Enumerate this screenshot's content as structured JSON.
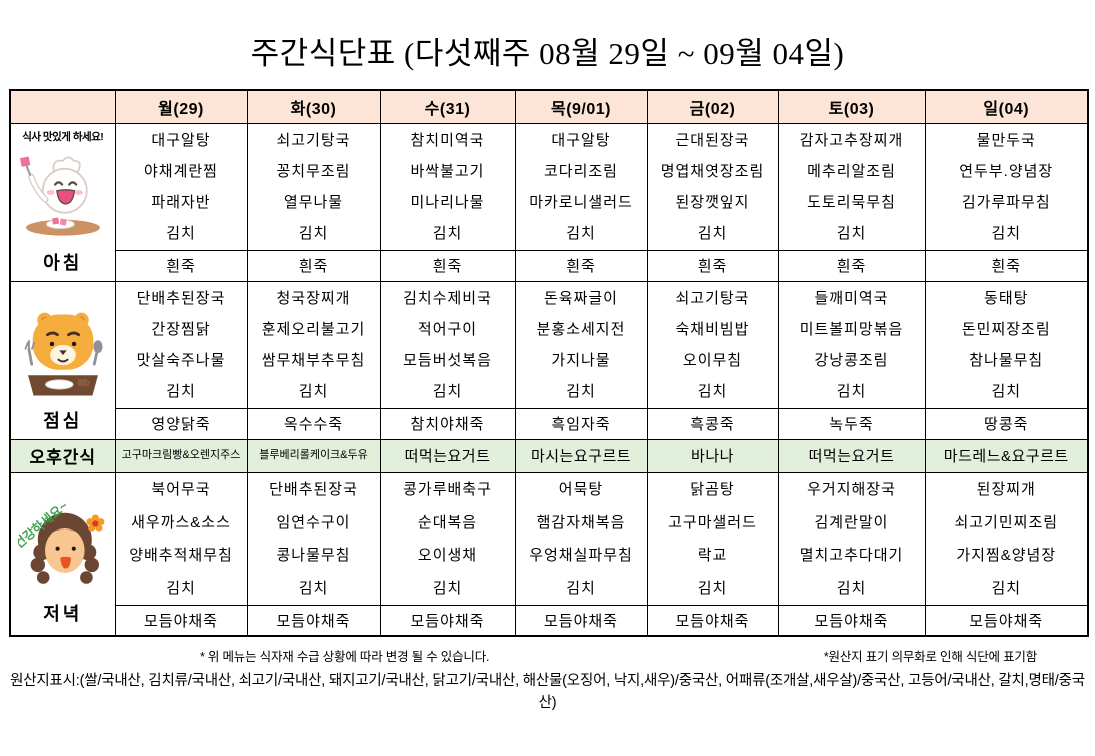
{
  "title": "주간식단표 (다섯째주 08월 29일 ~ 09월 04일)",
  "days": [
    "월(29)",
    "화(30)",
    "수(31)",
    "목(9/01)",
    "금(02)",
    "토(03)",
    "일(04)"
  ],
  "rows": {
    "breakfast": {
      "label": "아침",
      "icon": "eating-character-icon",
      "icon_caption": "식사 맛있게 하세요!",
      "menus": [
        [
          "대구알탕",
          "야채계란찜",
          "파래자반",
          "김치"
        ],
        [
          "쇠고기탕국",
          "꽁치무조림",
          "열무나물",
          "김치"
        ],
        [
          "참치미역국",
          "바싹불고기",
          "미나리나물",
          "김치"
        ],
        [
          "대구알탕",
          "코다리조림",
          "마카로니샐러드",
          "김치"
        ],
        [
          "근대된장국",
          "명엽채엿장조림",
          "된장깻잎지",
          "김치"
        ],
        [
          "감자고추장찌개",
          "메추리알조림",
          "도토리묵무침",
          "김치"
        ],
        [
          "물만두국",
          "연두부.양념장",
          "김가루파무침",
          "김치"
        ]
      ],
      "porridge": [
        "흰죽",
        "흰죽",
        "흰죽",
        "흰죽",
        "흰죽",
        "흰죽",
        "흰죽"
      ]
    },
    "lunch": {
      "label": "점심",
      "icon": "ryan-bear-icon",
      "menus": [
        [
          "단배추된장국",
          "간장찜닭",
          "맛살숙주나물",
          "김치"
        ],
        [
          "청국장찌개",
          "훈제오리불고기",
          "쌈무채부추무침",
          "김치"
        ],
        [
          "김치수제비국",
          "적어구이",
          "모듬버섯복음",
          "김치"
        ],
        [
          "돈육짜글이",
          "분홍소세지전",
          "가지나물",
          "김치"
        ],
        [
          "쇠고기탕국",
          "숙채비빔밥",
          "오이무침",
          "김치"
        ],
        [
          "들깨미역국",
          "미트볼피망볶음",
          "강낭콩조림",
          "김치"
        ],
        [
          "동태탕",
          "돈민찌장조림",
          "참나물무침",
          "김치"
        ]
      ],
      "porridge": [
        "영양닭죽",
        "옥수수죽",
        "참치야채죽",
        "흑임자죽",
        "흑콩죽",
        "녹두죽",
        "땅콩죽"
      ]
    },
    "snack": {
      "label": "오후간식",
      "items": [
        "고구마크림빵&오렌지주스",
        "블루베리롤케이크&두유",
        "떠먹는요거트",
        "마시는요구르트",
        "바나나",
        "떠먹는요거트",
        "마드레느&요구르트"
      ]
    },
    "dinner": {
      "label": "저녁",
      "icon": "healthy-woman-icon",
      "icon_caption": "건강하세요~",
      "menus": [
        [
          "북어무국",
          "새우까스&소스",
          "양배추적채무침",
          "김치"
        ],
        [
          "단배추된장국",
          "임연수구이",
          "콩나물무침",
          "김치"
        ],
        [
          "콩가루배축구",
          "순대복음",
          "오이생채",
          "김치"
        ],
        [
          "어묵탕",
          "햄감자채복음",
          "우엉채실파무침",
          "김치"
        ],
        [
          "닭곰탕",
          "고구마샐러드",
          "락교",
          "김치"
        ],
        [
          "우거지해장국",
          "김계란말이",
          "멸치고추다대기",
          "김치"
        ],
        [
          "된장찌개",
          "쇠고기민찌조림",
          "가지찜&양념장",
          "김치"
        ]
      ],
      "porridge": [
        "모듬야채죽",
        "모듬야채죽",
        "모듬야채죽",
        "모듬야채죽",
        "모듬야채죽",
        "모듬야채죽",
        "모듬야채죽"
      ]
    }
  },
  "footnotes": {
    "change_note": "* 위 메뉴는 식자재 수급 상황에 따라 변경 될 수 있습니다.",
    "origin_note": "*원산지 표기 의무화로 인해 식단에 표기함",
    "origin_detail": "원산지표시:(쌀/국내산, 김치류/국내산, 쇠고기/국내산, 돼지고기/국내산, 닭고기/국내산, 해산물(오징어, 낙지,새우)/중국산, 어패류(조개살,새우살)/중국산, 고등어/국내산, 갈치,명태/중국산)"
  },
  "icons": [
    "eating-character-icon",
    "ryan-bear-icon",
    "healthy-woman-icon"
  ],
  "colors": {
    "header_bg": "#fce4d6",
    "snack_bg": "#e2efda",
    "border": "#000000",
    "caption_green": "#3fa14f",
    "mouth_pink": "#e8517e",
    "mouth_orange": "#e85426"
  }
}
